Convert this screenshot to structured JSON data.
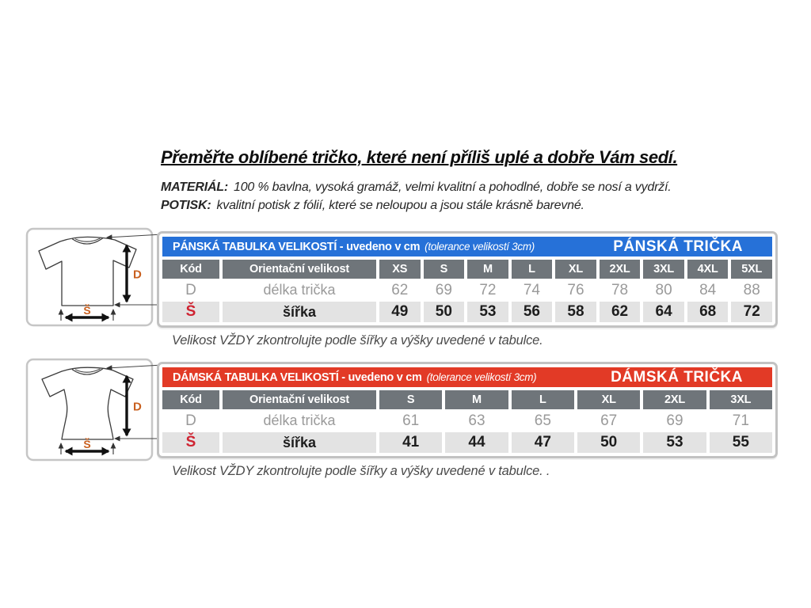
{
  "intro": {
    "title": "Přeměřte oblíbené tričko, které není příliš uplé a dobře Vám sedí.",
    "material_label": "MATERIÁL:",
    "material_text": "100 % bavlna, vysoká gramáž, velmi kvalitní a pohodlné, dobře se nosí a vydrží.",
    "print_label": "POTISK:",
    "print_text": "kvalitní potisk z fólií, které se neloupou a jsou stále krásně barevné."
  },
  "mens_table": {
    "header_left": "PÁNSKÁ TABULKA VELIKOSTÍ - uvedeno v cm",
    "header_tolerance": "(tolerance velikostí 3cm)",
    "header_right": "PÁNSKÁ TRIČKA",
    "columns": [
      "Kód",
      "Orientační velikost",
      "XS",
      "S",
      "M",
      "L",
      "XL",
      "2XL",
      "3XL",
      "4XL",
      "5XL"
    ],
    "rows": [
      {
        "code": "D",
        "name": "délka trička",
        "values": [
          "62",
          "69",
          "72",
          "74",
          "76",
          "78",
          "80",
          "84",
          "88"
        ]
      },
      {
        "code": "Š",
        "name": "šířka",
        "values": [
          "49",
          "50",
          "53",
          "56",
          "58",
          "62",
          "64",
          "68",
          "72"
        ]
      }
    ],
    "note": "Velikost VŽDY zkontrolujte podle šířky a výšky uvedené v tabulce."
  },
  "womens_table": {
    "header_left": "DÁMSKÁ TABULKA VELIKOSTÍ - uvedeno v cm",
    "header_tolerance": "(tolerance velikostí 3cm)",
    "header_right": "DÁMSKÁ TRIČKA",
    "columns": [
      "Kód",
      "Orientační velikost",
      "S",
      "M",
      "L",
      "XL",
      "2XL",
      "3XL"
    ],
    "rows": [
      {
        "code": "D",
        "name": "délka trička",
        "values": [
          "61",
          "63",
          "65",
          "67",
          "69",
          "71"
        ]
      },
      {
        "code": "Š",
        "name": "šířka",
        "values": [
          "41",
          "44",
          "47",
          "50",
          "53",
          "55"
        ]
      }
    ],
    "note": "Velikost VŽDY zkontrolujte podle šířky a výšky uvedené v tabulce. ."
  },
  "diagram": {
    "length_label": "D",
    "width_label": "Š"
  },
  "colors": {
    "mens_header_bg": "#2671d8",
    "womens_header_bg": "#e23a26",
    "column_header_bg": "#6f757a",
    "alt_row_bg": "#e3e3e3",
    "code_s_red": "#cf2331",
    "diagram_label_orange": "#c9601f"
  }
}
